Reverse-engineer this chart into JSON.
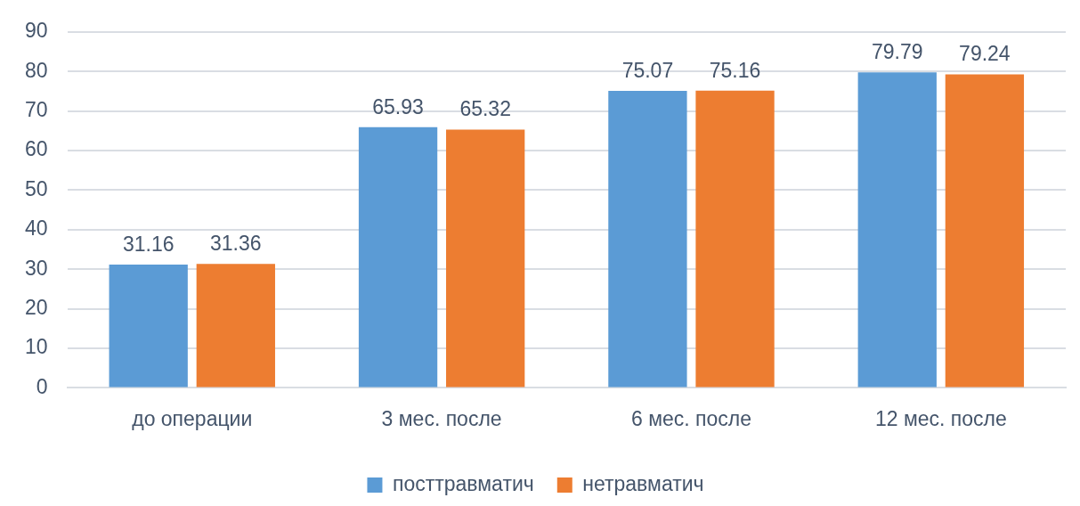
{
  "chart_data": {
    "type": "bar",
    "categories": [
      "до операции",
      "3 мес. после",
      "6 мес. после",
      "12 мес. после"
    ],
    "series": [
      {
        "name": "посттравматич",
        "color": "#5b9bd5",
        "values": [
          31.16,
          65.93,
          75.07,
          79.79
        ]
      },
      {
        "name": "нетравматич",
        "color": "#ed7d31",
        "values": [
          31.36,
          65.32,
          75.16,
          79.24
        ]
      }
    ],
    "ylim": [
      0,
      90
    ],
    "yticks": [
      0,
      10,
      20,
      30,
      40,
      50,
      60,
      70,
      80,
      90
    ],
    "grid": "y",
    "legend": "bottom",
    "data_labels": true
  }
}
